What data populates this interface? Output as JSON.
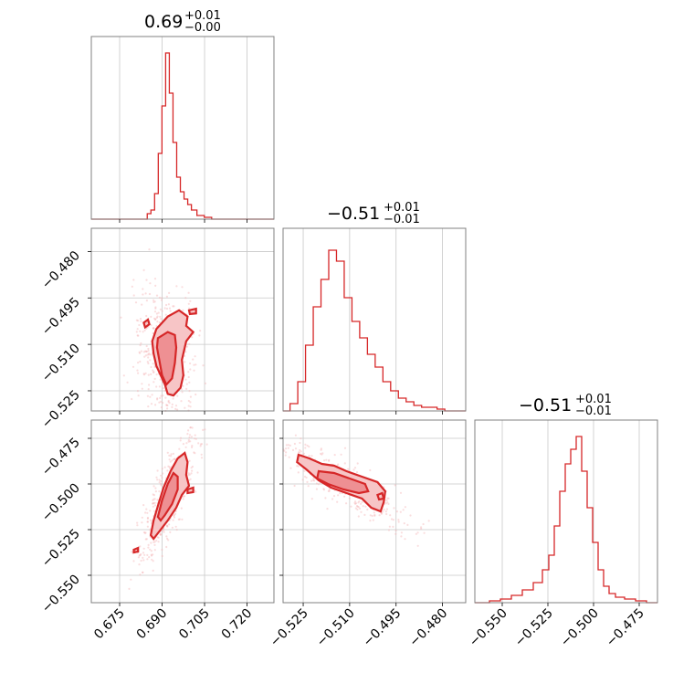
{
  "chart_data": {
    "type": "corner",
    "colors": {
      "line": "#d62728",
      "contour_outer": "#f7c5c6",
      "contour_inner": "#ee9093",
      "points": "#f4b4b6",
      "grid": "#c8c8c8"
    },
    "grid": true,
    "parameters": [
      {
        "range": [
          0.665,
          0.7295
        ],
        "ticks": [
          0.675,
          0.69,
          0.705,
          0.72
        ],
        "tick_labels": [
          "0.675",
          "0.690",
          "0.705",
          "0.720"
        ],
        "title": {
          "value": "0.69",
          "plus": "+0.01",
          "minus": "−0.00"
        },
        "hist": {
          "x": [
            0.6854,
            0.6867,
            0.688,
            0.6893,
            0.6906,
            0.6919,
            0.6932,
            0.6945,
            0.6958,
            0.6971,
            0.6984,
            0.6997,
            0.701,
            0.7036,
            0.7062
          ],
          "counts": [
            0.03,
            0.05,
            0.14,
            0.36,
            0.62,
            0.91,
            0.69,
            0.42,
            0.23,
            0.15,
            0.11,
            0.08,
            0.05,
            0.02,
            0.01
          ]
        }
      },
      {
        "range": [
          -0.5315,
          -0.4725
        ],
        "ticks": [
          -0.525,
          -0.51,
          -0.495,
          -0.48
        ],
        "tick_labels": [
          "−0.525",
          "−0.510",
          "−0.495",
          "−0.480"
        ],
        "title": {
          "value": "−0.51",
          "plus": "+0.01",
          "minus": "−0.01"
        },
        "hist": {
          "x": [
            -0.528,
            -0.5255,
            -0.523,
            -0.5205,
            -0.518,
            -0.5155,
            -0.513,
            -0.5105,
            -0.508,
            -0.5055,
            -0.503,
            -0.5005,
            -0.498,
            -0.4955,
            -0.493,
            -0.4905,
            -0.488,
            -0.4855,
            -0.483,
            -0.4805
          ],
          "counts": [
            0.04,
            0.16,
            0.36,
            0.57,
            0.72,
            0.88,
            0.82,
            0.62,
            0.49,
            0.4,
            0.31,
            0.24,
            0.16,
            0.11,
            0.07,
            0.05,
            0.03,
            0.02,
            0.02,
            0.01
          ]
        }
      },
      {
        "range": [
          -0.565,
          -0.465
        ],
        "ticks": [
          -0.55,
          -0.525,
          -0.5,
          -0.475
        ],
        "tick_labels": [
          "−0.550",
          "−0.525",
          "−0.500",
          "−0.475"
        ],
        "title": {
          "value": "−0.51",
          "plus": "+0.01",
          "minus": "−0.01"
        },
        "hist": {
          "x": [
            -0.554,
            -0.548,
            -0.542,
            -0.536,
            -0.53,
            -0.526,
            -0.523,
            -0.52,
            -0.517,
            -0.514,
            -0.511,
            -0.508,
            -0.505,
            -0.502,
            -0.499,
            -0.496,
            -0.493,
            -0.49,
            -0.486,
            -0.48,
            -0.474
          ],
          "counts": [
            0.01,
            0.02,
            0.04,
            0.07,
            0.11,
            0.18,
            0.26,
            0.42,
            0.61,
            0.76,
            0.84,
            0.91,
            0.72,
            0.52,
            0.33,
            0.18,
            0.09,
            0.05,
            0.03,
            0.02,
            0.01
          ]
        }
      }
    ],
    "contours": [
      {
        "xparam": 0,
        "yparam": 1,
        "outer": [
          [
            0.688,
            -0.505
          ],
          [
            0.692,
            -0.501
          ],
          [
            0.696,
            -0.499
          ],
          [
            0.699,
            -0.501
          ],
          [
            0.6985,
            -0.504
          ],
          [
            0.701,
            -0.506
          ],
          [
            0.6985,
            -0.509
          ],
          [
            0.697,
            -0.515
          ],
          [
            0.6975,
            -0.52
          ],
          [
            0.6965,
            -0.524
          ],
          [
            0.694,
            -0.5265
          ],
          [
            0.692,
            -0.526
          ],
          [
            0.691,
            -0.523
          ],
          [
            0.6895,
            -0.52
          ],
          [
            0.688,
            -0.517
          ],
          [
            0.687,
            -0.513
          ],
          [
            0.6865,
            -0.509
          ]
        ],
        "inner": [
          [
            0.6885,
            -0.508
          ],
          [
            0.692,
            -0.506
          ],
          [
            0.6945,
            -0.507
          ],
          [
            0.695,
            -0.511
          ],
          [
            0.6945,
            -0.516
          ],
          [
            0.6935,
            -0.521
          ],
          [
            0.6915,
            -0.523
          ],
          [
            0.69,
            -0.52
          ],
          [
            0.689,
            -0.515
          ],
          [
            0.6882,
            -0.511
          ]
        ],
        "extra": [
          [
            [
              0.6835,
              -0.503
            ],
            [
              0.685,
              -0.502
            ],
            [
              0.6855,
              -0.5035
            ],
            [
              0.684,
              -0.5045
            ]
          ],
          [
            [
              0.6995,
              -0.499
            ],
            [
              0.702,
              -0.4985
            ],
            [
              0.702,
              -0.5
            ],
            [
              0.6998,
              -0.5002
            ]
          ]
        ]
      },
      {
        "xparam": 0,
        "yparam": 2,
        "outer": [
          [
            0.686,
            -0.528
          ],
          [
            0.687,
            -0.52
          ],
          [
            0.6885,
            -0.512
          ],
          [
            0.6905,
            -0.502
          ],
          [
            0.693,
            -0.493
          ],
          [
            0.6955,
            -0.486
          ],
          [
            0.698,
            -0.483
          ],
          [
            0.699,
            -0.488
          ],
          [
            0.6985,
            -0.495
          ],
          [
            0.6995,
            -0.501
          ],
          [
            0.697,
            -0.506
          ],
          [
            0.695,
            -0.513
          ],
          [
            0.692,
            -0.52
          ],
          [
            0.689,
            -0.526
          ],
          [
            0.687,
            -0.53
          ]
        ],
        "inner": [
          [
            0.6885,
            -0.518
          ],
          [
            0.69,
            -0.509
          ],
          [
            0.692,
            -0.5
          ],
          [
            0.694,
            -0.494
          ],
          [
            0.6955,
            -0.496
          ],
          [
            0.6955,
            -0.503
          ],
          [
            0.6935,
            -0.511
          ],
          [
            0.691,
            -0.517
          ],
          [
            0.6895,
            -0.52
          ]
        ],
        "extra": [
          [
            [
              0.68,
              -0.536
            ],
            [
              0.6815,
              -0.535
            ],
            [
              0.6815,
              -0.537
            ],
            [
              0.68,
              -0.5375
            ]
          ],
          [
            [
              0.699,
              -0.503
            ],
            [
              0.701,
              -0.502
            ],
            [
              0.701,
              -0.5045
            ],
            [
              0.699,
              -0.505
            ]
          ]
        ]
      },
      {
        "xparam": 1,
        "yparam": 2,
        "outer": [
          [
            -0.5265,
            -0.484
          ],
          [
            -0.523,
            -0.486
          ],
          [
            -0.519,
            -0.489
          ],
          [
            -0.515,
            -0.49
          ],
          [
            -0.511,
            -0.493
          ],
          [
            -0.506,
            -0.496
          ],
          [
            -0.501,
            -0.499
          ],
          [
            -0.4985,
            -0.504
          ],
          [
            -0.499,
            -0.51
          ],
          [
            -0.5,
            -0.515
          ],
          [
            -0.503,
            -0.513
          ],
          [
            -0.506,
            -0.508
          ],
          [
            -0.511,
            -0.505
          ],
          [
            -0.516,
            -0.502
          ],
          [
            -0.52,
            -0.498
          ],
          [
            -0.524,
            -0.492
          ],
          [
            -0.527,
            -0.488
          ]
        ],
        "inner": [
          [
            -0.52,
            -0.493
          ],
          [
            -0.515,
            -0.494
          ],
          [
            -0.51,
            -0.497
          ],
          [
            -0.505,
            -0.5
          ],
          [
            -0.504,
            -0.504
          ],
          [
            -0.507,
            -0.505
          ],
          [
            -0.512,
            -0.503
          ],
          [
            -0.517,
            -0.5
          ],
          [
            -0.5205,
            -0.497
          ]
        ],
        "extra": [
          [
            [
              -0.501,
              -0.506
            ],
            [
              -0.4995,
              -0.505
            ],
            [
              -0.499,
              -0.508
            ],
            [
              -0.5005,
              -0.5085
            ]
          ]
        ]
      }
    ]
  }
}
